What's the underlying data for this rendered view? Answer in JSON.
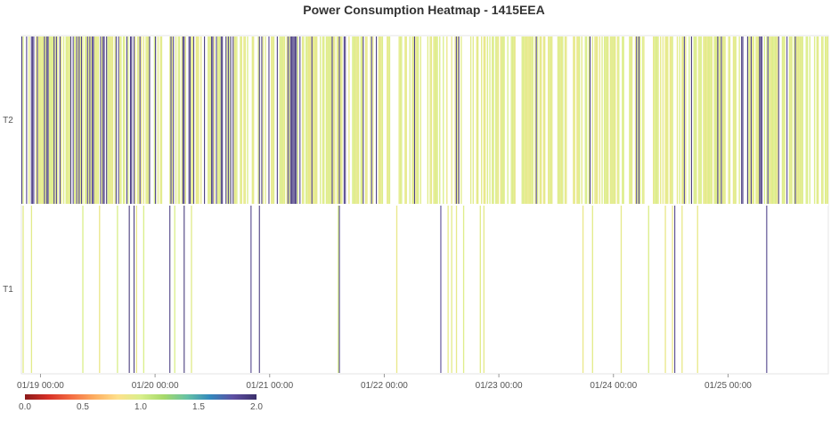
{
  "chart_data": {
    "type": "heatmap",
    "title": "Power Consumption Heatmap - 1415EEA",
    "rows": [
      "T2",
      "T1"
    ],
    "x_ticks": [
      "01/19 00:00",
      "01/20 00:00",
      "01/21 00:00",
      "01/22 00:00",
      "01/23 00:00",
      "01/24 00:00",
      "01/25 00:00"
    ],
    "x_start": "01/18 20:00",
    "x_end": "01/25 21:00",
    "interval_minutes": 15,
    "color_scale": {
      "min": 0.0,
      "max": 2.0,
      "tick_labels": [
        "0.0",
        "0.5",
        "1.0",
        "1.5",
        "2.0"
      ],
      "stops": [
        "#8b1a1a",
        "#d73027",
        "#f46d43",
        "#fdae61",
        "#fee08b",
        "#d9ef8b",
        "#a6d96a",
        "#66c2a5",
        "#3288bd",
        "#5e4fa2",
        "#3b2f6b"
      ]
    },
    "series": [
      {
        "name": "T2",
        "dominant_value": 0.95,
        "high_value": 1.95,
        "density_by_day": [
          0.75,
          0.7,
          0.72,
          0.6,
          0.62,
          0.64,
          0.68,
          0.7
        ],
        "high_share_by_day": [
          0.35,
          0.3,
          0.28,
          0.12,
          0.08,
          0.1,
          0.12,
          0.15
        ]
      },
      {
        "name": "T1",
        "dominant_value": 0.95,
        "high_value": 1.95,
        "density_by_day": [
          0.05,
          0.06,
          0.05,
          0.05,
          0.05,
          0.05,
          0.05,
          0.06
        ],
        "high_share_by_day": [
          0.45,
          0.4,
          0.35,
          0.3,
          0.25,
          0.25,
          0.3,
          0.3
        ]
      }
    ],
    "grid": false,
    "legend_position": "bottom-left"
  }
}
